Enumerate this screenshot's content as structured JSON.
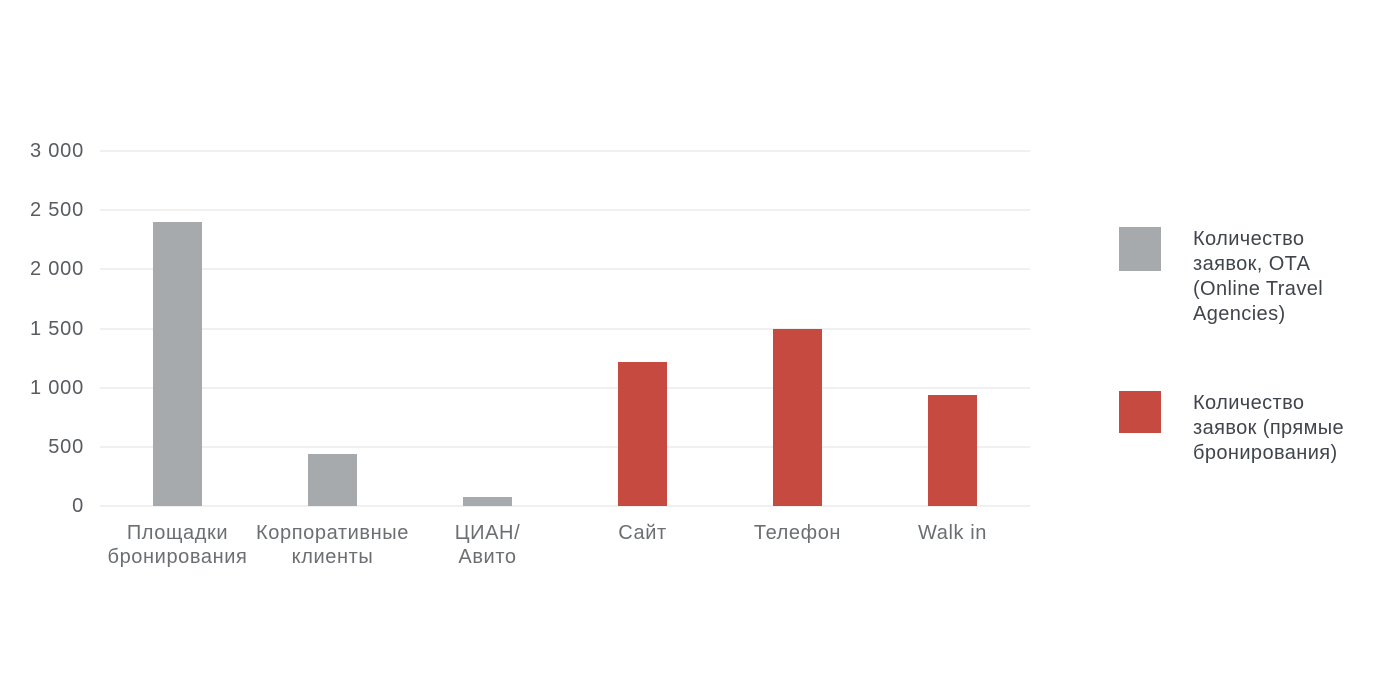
{
  "chart_data": {
    "type": "bar",
    "title": "",
    "xlabel": "",
    "ylabel": "",
    "ylim": [
      0,
      3000
    ],
    "grid": true,
    "legend_position": "right",
    "y_ticks": [
      {
        "value": 0,
        "label": "0"
      },
      {
        "value": 500,
        "label": "500"
      },
      {
        "value": 1000,
        "label": "1 000"
      },
      {
        "value": 1500,
        "label": "1 500"
      },
      {
        "value": 2000,
        "label": "2 000"
      },
      {
        "value": 2500,
        "label": "2 500"
      },
      {
        "value": 3000,
        "label": "3 000"
      }
    ],
    "categories": [
      "Площадки бронирования",
      "Корпоративные клиенты",
      "ЦИАН/Авито",
      "Сайт",
      "Телефон",
      "Walk in"
    ],
    "category_label_lines": [
      [
        "Площадки",
        "бронирования"
      ],
      [
        "Корпоративные",
        "клиенты"
      ],
      [
        "ЦИАН/",
        "Авито"
      ],
      [
        "Сайт"
      ],
      [
        "Телефон"
      ],
      [
        "Walk in"
      ]
    ],
    "values": [
      2400,
      440,
      80,
      1220,
      1500,
      940
    ],
    "bar_series_ids": [
      "ota",
      "ota",
      "ota",
      "direct",
      "direct",
      "direct"
    ],
    "series": [
      {
        "id": "ota",
        "name": "Количество заявок, ОТА (Online Travel Agencies)",
        "label_lines": [
          "Количество",
          "заявок, ОТА",
          "(Online Travel",
          "Agencies)"
        ],
        "color": "#a7aaad"
      },
      {
        "id": "direct",
        "name": "Количество заявок (прямые бронирования)",
        "label_lines": [
          "Количество",
          "заявок (прямые",
          "бронирования)"
        ],
        "color": "#c74a41"
      }
    ]
  },
  "layout_colors": {
    "background": "#ffffff",
    "gridline": "#f0f0f0",
    "tick_text": "#585c61",
    "category_text": "#6b6e72",
    "legend_text": "#40454d"
  }
}
